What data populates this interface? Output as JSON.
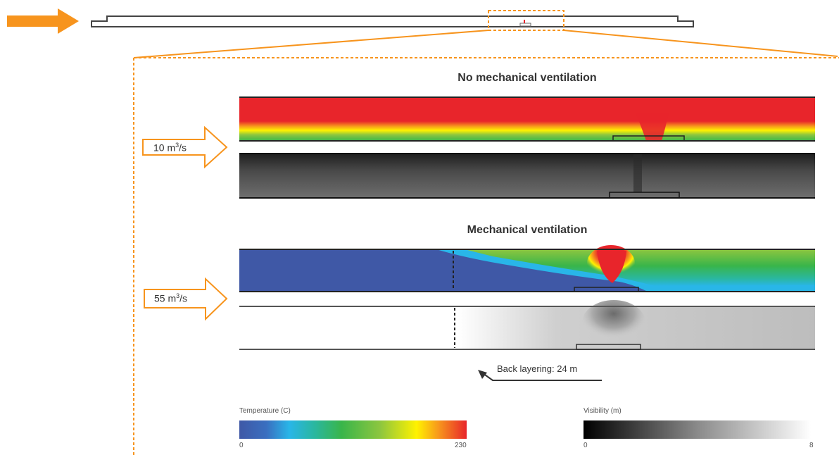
{
  "panels": {
    "no_vent_title": "No mechanical ventilation",
    "mech_vent_title": "Mechanical ventilation"
  },
  "flows": {
    "low": {
      "value": "10 m",
      "sup": "3",
      "unit": "/s"
    },
    "high": {
      "value": "55 m",
      "sup": "3",
      "unit": "/s"
    }
  },
  "annotation": {
    "back_layering": "Back layering: 24 m"
  },
  "legend": {
    "temperature": {
      "title": "Temperature  (C)",
      "min": "0",
      "max": "230"
    },
    "visibility": {
      "title": "Visibility (m)",
      "min": "0",
      "max": "8"
    }
  },
  "colors": {
    "accent_orange": "#f7941d",
    "hot_red": "#e8252b",
    "cold_blue": "#3f58a6",
    "green": "#39b54a",
    "yellow": "#fff200"
  }
}
